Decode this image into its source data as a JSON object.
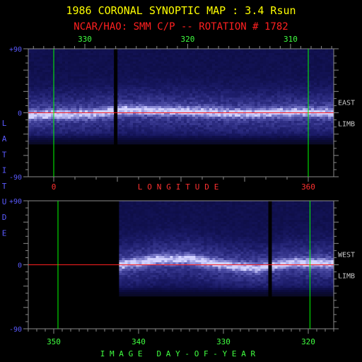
{
  "title": "1986 CORONAL SYNOPTIC MAP : 3.4 Rsun",
  "subtitle": "NCAR/HAO: SMM C/P -- ROTATION # 1782",
  "colors": {
    "background": "#000000",
    "title": "#ffff00",
    "subtitle": "#ff2020",
    "day_label": "#40ff40",
    "lat_label": "#5a5aff",
    "lon_label": "#ff3030",
    "side_label": "#c8c8c8",
    "frame": "#8a8a8a",
    "grid_line": "#00ff00",
    "equator_line": "#ff2020",
    "map_base": "#05051a",
    "map_glow": "#c8c8ff"
  },
  "chart_data": [
    {
      "type": "heatmap",
      "panel": "east-limb",
      "side_label": [
        "EAST",
        "LIMB"
      ],
      "top_axis": {
        "ticks": [
          "330",
          "320",
          "310"
        ],
        "values": [
          330,
          320,
          310
        ]
      },
      "day_range": [
        335.5,
        305.8
      ],
      "bottom_axis": {
        "label": "LONGITUDE",
        "ticks": [
          "0",
          "360"
        ],
        "values": [
          0,
          360
        ]
      },
      "ylim": [
        -90,
        90
      ],
      "y_ticks": [
        "+90",
        "0",
        "-90"
      ],
      "y_label": "LATITUDE",
      "equator": 0,
      "green_markers_lon": [
        0,
        360
      ],
      "gap_day": 327.0,
      "data_range_day": [
        335.5,
        305.8
      ],
      "streamer_belt": [
        {
          "day": 335,
          "lat": -3
        },
        {
          "day": 330,
          "lat": -2
        },
        {
          "day": 326,
          "lat": 4
        },
        {
          "day": 320,
          "lat": 2
        },
        {
          "day": 315,
          "lat": -1
        },
        {
          "day": 310,
          "lat": 1
        },
        {
          "day": 306,
          "lat": 0
        }
      ]
    },
    {
      "type": "heatmap",
      "panel": "west-limb",
      "side_label": [
        "WEST",
        "LIMB"
      ],
      "bottom_axis": {
        "label": "IMAGE DAY-OF-YEAR",
        "ticks": [
          "350",
          "340",
          "330",
          "320"
        ],
        "values": [
          350,
          340,
          330,
          320
        ]
      },
      "day_range": [
        353,
        317
      ],
      "ylim": [
        -90,
        90
      ],
      "y_ticks": [
        "+90",
        "0",
        "-90"
      ],
      "equator": 0,
      "green_markers_day": [
        349.5,
        319.8
      ],
      "gap_day": 324.5,
      "data_range_day": [
        342.3,
        317
      ],
      "streamer_belt": [
        {
          "day": 342,
          "lat": 0
        },
        {
          "day": 338,
          "lat": 7
        },
        {
          "day": 334,
          "lat": 8
        },
        {
          "day": 330,
          "lat": 0
        },
        {
          "day": 326,
          "lat": -5
        },
        {
          "day": 322,
          "lat": 3
        },
        {
          "day": 318,
          "lat": 2
        }
      ]
    }
  ]
}
